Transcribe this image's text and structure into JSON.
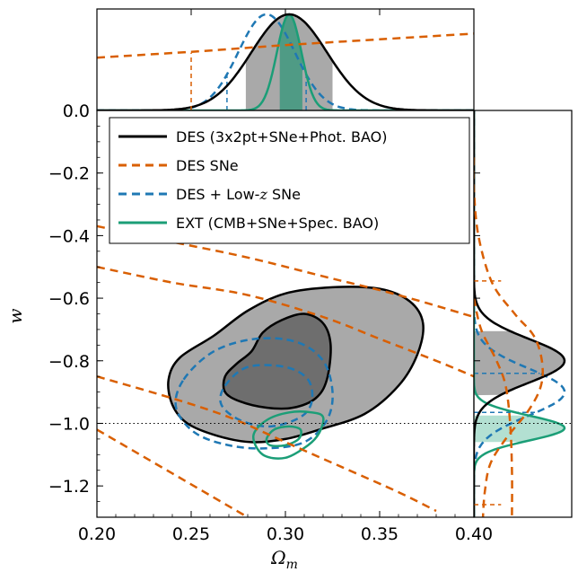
{
  "chart_data": {
    "type": "contour",
    "xlabel": "Ω",
    "xlabel_sub": "m",
    "ylabel": "w",
    "xlim": [
      0.2,
      0.4
    ],
    "ylim": [
      -1.3,
      0.0
    ],
    "x_ticks": [
      "0.20",
      "0.25",
      "0.30",
      "0.35",
      "0.40"
    ],
    "y_ticks": [
      "0.0",
      "−0.2",
      "−0.4",
      "−0.6",
      "−0.8",
      "−1.0",
      "−1.2"
    ],
    "reference_line": {
      "w": -1.0,
      "style": "dotted"
    },
    "legend": {
      "placement": "upper-left",
      "entries": [
        {
          "id": "des",
          "label": "DES (3x2pt+SNe+Phot. BAO)",
          "style": "solid",
          "color": "#000000"
        },
        {
          "id": "sne",
          "label": "DES SNe",
          "style": "dashed",
          "color": "#d95f02"
        },
        {
          "id": "lowz",
          "label_prefix": "DES + Low-",
          "label_var": "z",
          "label_suffix": " SNe",
          "style": "dashed",
          "color": "#1f78b4"
        },
        {
          "id": "ext",
          "label": "EXT (CMB+SNe+Spec. BAO)",
          "style": "solid",
          "color": "#1b9e77"
        }
      ]
    },
    "series": [
      {
        "id": "des",
        "color": "#000000",
        "fill": "#a9a9a9",
        "inner_fill": "#6e6e6e",
        "contour_68": [
          [
            0.282,
            -0.77
          ],
          [
            0.288,
            -0.71
          ],
          [
            0.298,
            -0.67
          ],
          [
            0.31,
            -0.65
          ],
          [
            0.32,
            -0.68
          ],
          [
            0.324,
            -0.75
          ],
          [
            0.322,
            -0.86
          ],
          [
            0.316,
            -0.92
          ],
          [
            0.304,
            -0.95
          ],
          [
            0.29,
            -0.95
          ],
          [
            0.276,
            -0.93
          ],
          [
            0.268,
            -0.9
          ],
          [
            0.268,
            -0.85
          ],
          [
            0.274,
            -0.81
          ]
        ],
        "contour_95": [
          [
            0.262,
            -0.72
          ],
          [
            0.28,
            -0.64
          ],
          [
            0.3,
            -0.585
          ],
          [
            0.325,
            -0.565
          ],
          [
            0.35,
            -0.57
          ],
          [
            0.366,
            -0.61
          ],
          [
            0.373,
            -0.68
          ],
          [
            0.37,
            -0.78
          ],
          [
            0.36,
            -0.88
          ],
          [
            0.342,
            -0.97
          ],
          [
            0.318,
            -1.02
          ],
          [
            0.3,
            -1.05
          ],
          [
            0.282,
            -1.06
          ],
          [
            0.264,
            -1.04
          ],
          [
            0.248,
            -1.0
          ],
          [
            0.24,
            -0.94
          ],
          [
            0.238,
            -0.86
          ],
          [
            0.244,
            -0.79
          ]
        ],
        "marginal_omega_m": {
          "mean": 0.302,
          "sigma": 0.02,
          "shaded_68": [
            0.279,
            0.325
          ]
        },
        "marginal_w": {
          "mean": -0.8,
          "sigma": 0.07,
          "shaded_68": [
            -0.91,
            -0.705
          ]
        }
      },
      {
        "id": "sne",
        "color": "#d95f02",
        "contour_68": [
          [
            0.2,
            -0.5
          ],
          [
            0.24,
            -0.55
          ],
          [
            0.28,
            -0.59
          ],
          [
            0.32,
            -0.66
          ],
          [
            0.35,
            -0.73
          ],
          [
            0.38,
            -0.8
          ],
          [
            0.4,
            -0.85
          ]
        ],
        "contour_68_low": [
          [
            0.2,
            -0.85
          ],
          [
            0.24,
            -0.92
          ],
          [
            0.27,
            -0.98
          ],
          [
            0.3,
            -1.06
          ],
          [
            0.33,
            -1.14
          ],
          [
            0.36,
            -1.22
          ],
          [
            0.38,
            -1.28
          ]
        ],
        "contour_95": [
          [
            0.2,
            -0.37
          ],
          [
            0.24,
            -0.42
          ],
          [
            0.28,
            -0.47
          ],
          [
            0.32,
            -0.53
          ],
          [
            0.36,
            -0.59
          ],
          [
            0.4,
            -0.66
          ]
        ],
        "contour_95_low": [
          [
            0.2,
            -1.02
          ],
          [
            0.22,
            -1.09
          ],
          [
            0.24,
            -1.16
          ],
          [
            0.26,
            -1.23
          ],
          [
            0.28,
            -1.3
          ]
        ],
        "marginal_omega_m": [
          [
            0.2,
            0.55
          ],
          [
            0.25,
            0.61
          ],
          [
            0.3,
            0.68
          ],
          [
            0.35,
            0.74
          ],
          [
            0.4,
            0.8
          ]
        ],
        "marginal_w_hi": [
          [
            -0.15,
            0.0
          ],
          [
            -0.25,
            0.0
          ],
          [
            -0.4,
            0.05
          ],
          [
            -0.55,
            0.2
          ],
          [
            -0.65,
            0.45
          ],
          [
            -0.72,
            0.66
          ],
          [
            -0.8,
            0.75
          ],
          [
            -0.88,
            0.74
          ],
          [
            -0.96,
            0.6
          ],
          [
            -1.05,
            0.35
          ],
          [
            -1.13,
            0.18
          ],
          [
            -1.22,
            0.12
          ],
          [
            -1.3,
            0.1
          ]
        ],
        "marginal_w_bounds": [
          -0.545,
          -1.26
        ]
      },
      {
        "id": "lowz",
        "color": "#1f78b4",
        "contour_68": [
          [
            0.268,
            -0.88
          ],
          [
            0.28,
            -0.82
          ],
          [
            0.3,
            -0.82
          ],
          [
            0.312,
            -0.86
          ],
          [
            0.314,
            -0.93
          ],
          [
            0.308,
            -0.98
          ],
          [
            0.292,
            -1.01
          ],
          [
            0.276,
            -0.99
          ],
          [
            0.266,
            -0.94
          ]
        ],
        "contour_95": [
          [
            0.246,
            -0.86
          ],
          [
            0.262,
            -0.77
          ],
          [
            0.284,
            -0.73
          ],
          [
            0.306,
            -0.74
          ],
          [
            0.32,
            -0.8
          ],
          [
            0.325,
            -0.9
          ],
          [
            0.322,
            -0.99
          ],
          [
            0.31,
            -1.06
          ],
          [
            0.29,
            -1.08
          ],
          [
            0.27,
            -1.07
          ],
          [
            0.252,
            -1.03
          ],
          [
            0.242,
            -0.95
          ]
        ],
        "marginal_omega_m": {
          "mean": 0.29,
          "sigma": 0.015,
          "dashed_bounds": [
            0.269,
            0.311
          ]
        },
        "marginal_w": {
          "mean": -0.9,
          "sigma": 0.075,
          "dashed_bounds": [
            -0.84,
            -0.965
          ]
        }
      },
      {
        "id": "ext",
        "color": "#1b9e77",
        "fill": "#b3e0d2",
        "contour_68": [
          [
            0.29,
            -1.05
          ],
          [
            0.294,
            -1.02
          ],
          [
            0.302,
            -1.01
          ],
          [
            0.308,
            -1.02
          ],
          [
            0.307,
            -1.05
          ],
          [
            0.3,
            -1.07
          ],
          [
            0.292,
            -1.07
          ]
        ],
        "contour_95": [
          [
            0.283,
            -1.04
          ],
          [
            0.29,
            -0.99
          ],
          [
            0.302,
            -0.965
          ],
          [
            0.314,
            -0.965
          ],
          [
            0.32,
            -0.98
          ],
          [
            0.318,
            -1.03
          ],
          [
            0.312,
            -1.07
          ],
          [
            0.3,
            -1.11
          ],
          [
            0.288,
            -1.1
          ]
        ],
        "marginal_omega_m": {
          "mean": 0.302,
          "sigma": 0.0065,
          "shaded_68": [
            0.297,
            0.309
          ]
        },
        "marginal_w": {
          "mean": -1.015,
          "sigma": 0.04,
          "shaded_68": [
            -0.975,
            -1.06
          ]
        }
      }
    ]
  }
}
